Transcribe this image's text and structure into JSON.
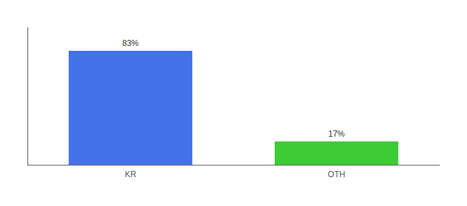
{
  "chart_data": {
    "type": "bar",
    "categories": [
      "KR",
      "OTH"
    ],
    "values": [
      83,
      17
    ],
    "value_labels": [
      "83%",
      "17%"
    ],
    "colors": [
      "#4472e8",
      "#3dcc35"
    ],
    "ylim": [
      0,
      100
    ],
    "grid": false,
    "data_labels": true,
    "tick_labels": "x"
  }
}
